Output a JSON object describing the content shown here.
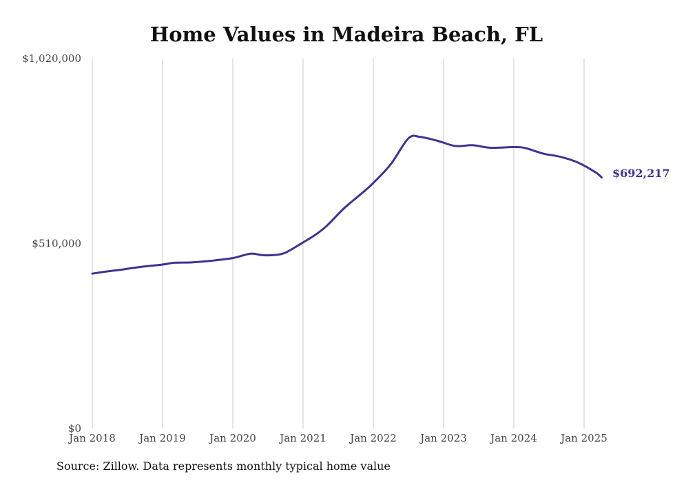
{
  "source_note": "Source: Zillow. Data represents monthly typical home value",
  "colors": {
    "line": "#3d3490",
    "grid": "#c8c8c8",
    "text": "#444444"
  },
  "chart_data": {
    "type": "line",
    "title": "Home Values in Madeira Beach, FL",
    "xlabel": "",
    "ylabel": "",
    "ylim": [
      0,
      1020000
    ],
    "y_ticks": [
      {
        "value": 0,
        "label": "$0"
      },
      {
        "value": 510000,
        "label": "$510,000"
      },
      {
        "value": 1020000,
        "label": "$1,020,000"
      }
    ],
    "x_ticks": [
      {
        "value": 2018,
        "label": "Jan 2018"
      },
      {
        "value": 2019,
        "label": "Jan 2019"
      },
      {
        "value": 2020,
        "label": "Jan 2020"
      },
      {
        "value": 2021,
        "label": "Jan 2021"
      },
      {
        "value": 2022,
        "label": "Jan 2022"
      },
      {
        "value": 2023,
        "label": "Jan 2023"
      },
      {
        "value": 2024,
        "label": "Jan 2024"
      },
      {
        "value": 2025,
        "label": "Jan 2025"
      }
    ],
    "xlim": [
      2018,
      2025.25
    ],
    "grid": "vertical",
    "end_label": "$692,217",
    "series": [
      {
        "x": [
          "2018-01",
          "2018-03",
          "2018-06",
          "2018-09",
          "2019-01",
          "2019-03",
          "2019-06",
          "2019-09",
          "2020-01",
          "2020-04",
          "2020-06",
          "2020-08",
          "2020-10",
          "2021-01",
          "2021-03",
          "2021-05",
          "2021-08",
          "2021-11",
          "2022-01",
          "2022-04",
          "2022-07",
          "2022-09",
          "2022-12",
          "2023-03",
          "2023-06",
          "2023-09",
          "2024-01",
          "2024-03",
          "2024-06",
          "2024-09",
          "2024-12",
          "2025-03",
          "2025-04"
        ],
        "values": [
          427000,
          432000,
          438000,
          445000,
          452000,
          457000,
          458000,
          462000,
          470000,
          482000,
          478000,
          478000,
          485000,
          513000,
          533000,
          558000,
          607000,
          648000,
          677000,
          729000,
          800000,
          804000,
          793000,
          779000,
          781000,
          774000,
          776000,
          773000,
          758000,
          749000,
          733000,
          706000,
          692217
        ]
      }
    ]
  }
}
